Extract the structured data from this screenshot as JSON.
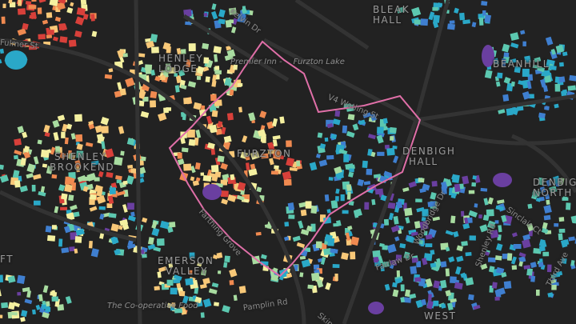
{
  "map": {
    "background": "#222222",
    "road_color": "#333333",
    "boundary_color": "#e06fa8",
    "palette": [
      "#6a3fa0",
      "#3f7fd0",
      "#2aa8c8",
      "#5cc8b0",
      "#a8dca0",
      "#f4f0a0",
      "#f8c878",
      "#f08a50",
      "#d8403a"
    ],
    "areas": [
      {
        "line1": "BLEAK",
        "line2": "HALL"
      },
      {
        "line1": "BEANHILL",
        "line2": ""
      },
      {
        "line1": "HENLEY",
        "line2": "LODGE"
      },
      {
        "line1": "FURZTON",
        "line2": ""
      },
      {
        "line1": "SHENLEY",
        "line2": "BROOKEND"
      },
      {
        "line1": "DENBIGH",
        "line2": "HALL"
      },
      {
        "line1": "DENBIGH",
        "line2": "NORTH"
      },
      {
        "line1": "EMERSON",
        "line2": "VALLEY"
      },
      {
        "line1": "FT",
        "line2": ""
      },
      {
        "line1": "WEST",
        "line2": ""
      }
    ],
    "roads": [
      "Kelvin Dr",
      "Fulmer St",
      "V4 Watling St",
      "Sinclair Ct",
      "Third Ave",
      "Farthing Grove",
      "Fairlaw Dr",
      "Woodbridge Dr",
      "Shenley Rd",
      "Pamplin Rd",
      "Skip Dr"
    ],
    "pois": [
      {
        "line1": "Premier Inn -",
        "line2": "Furzton Lake"
      },
      {
        "line1": "The Co-operative Food",
        "line2": ""
      }
    ]
  }
}
